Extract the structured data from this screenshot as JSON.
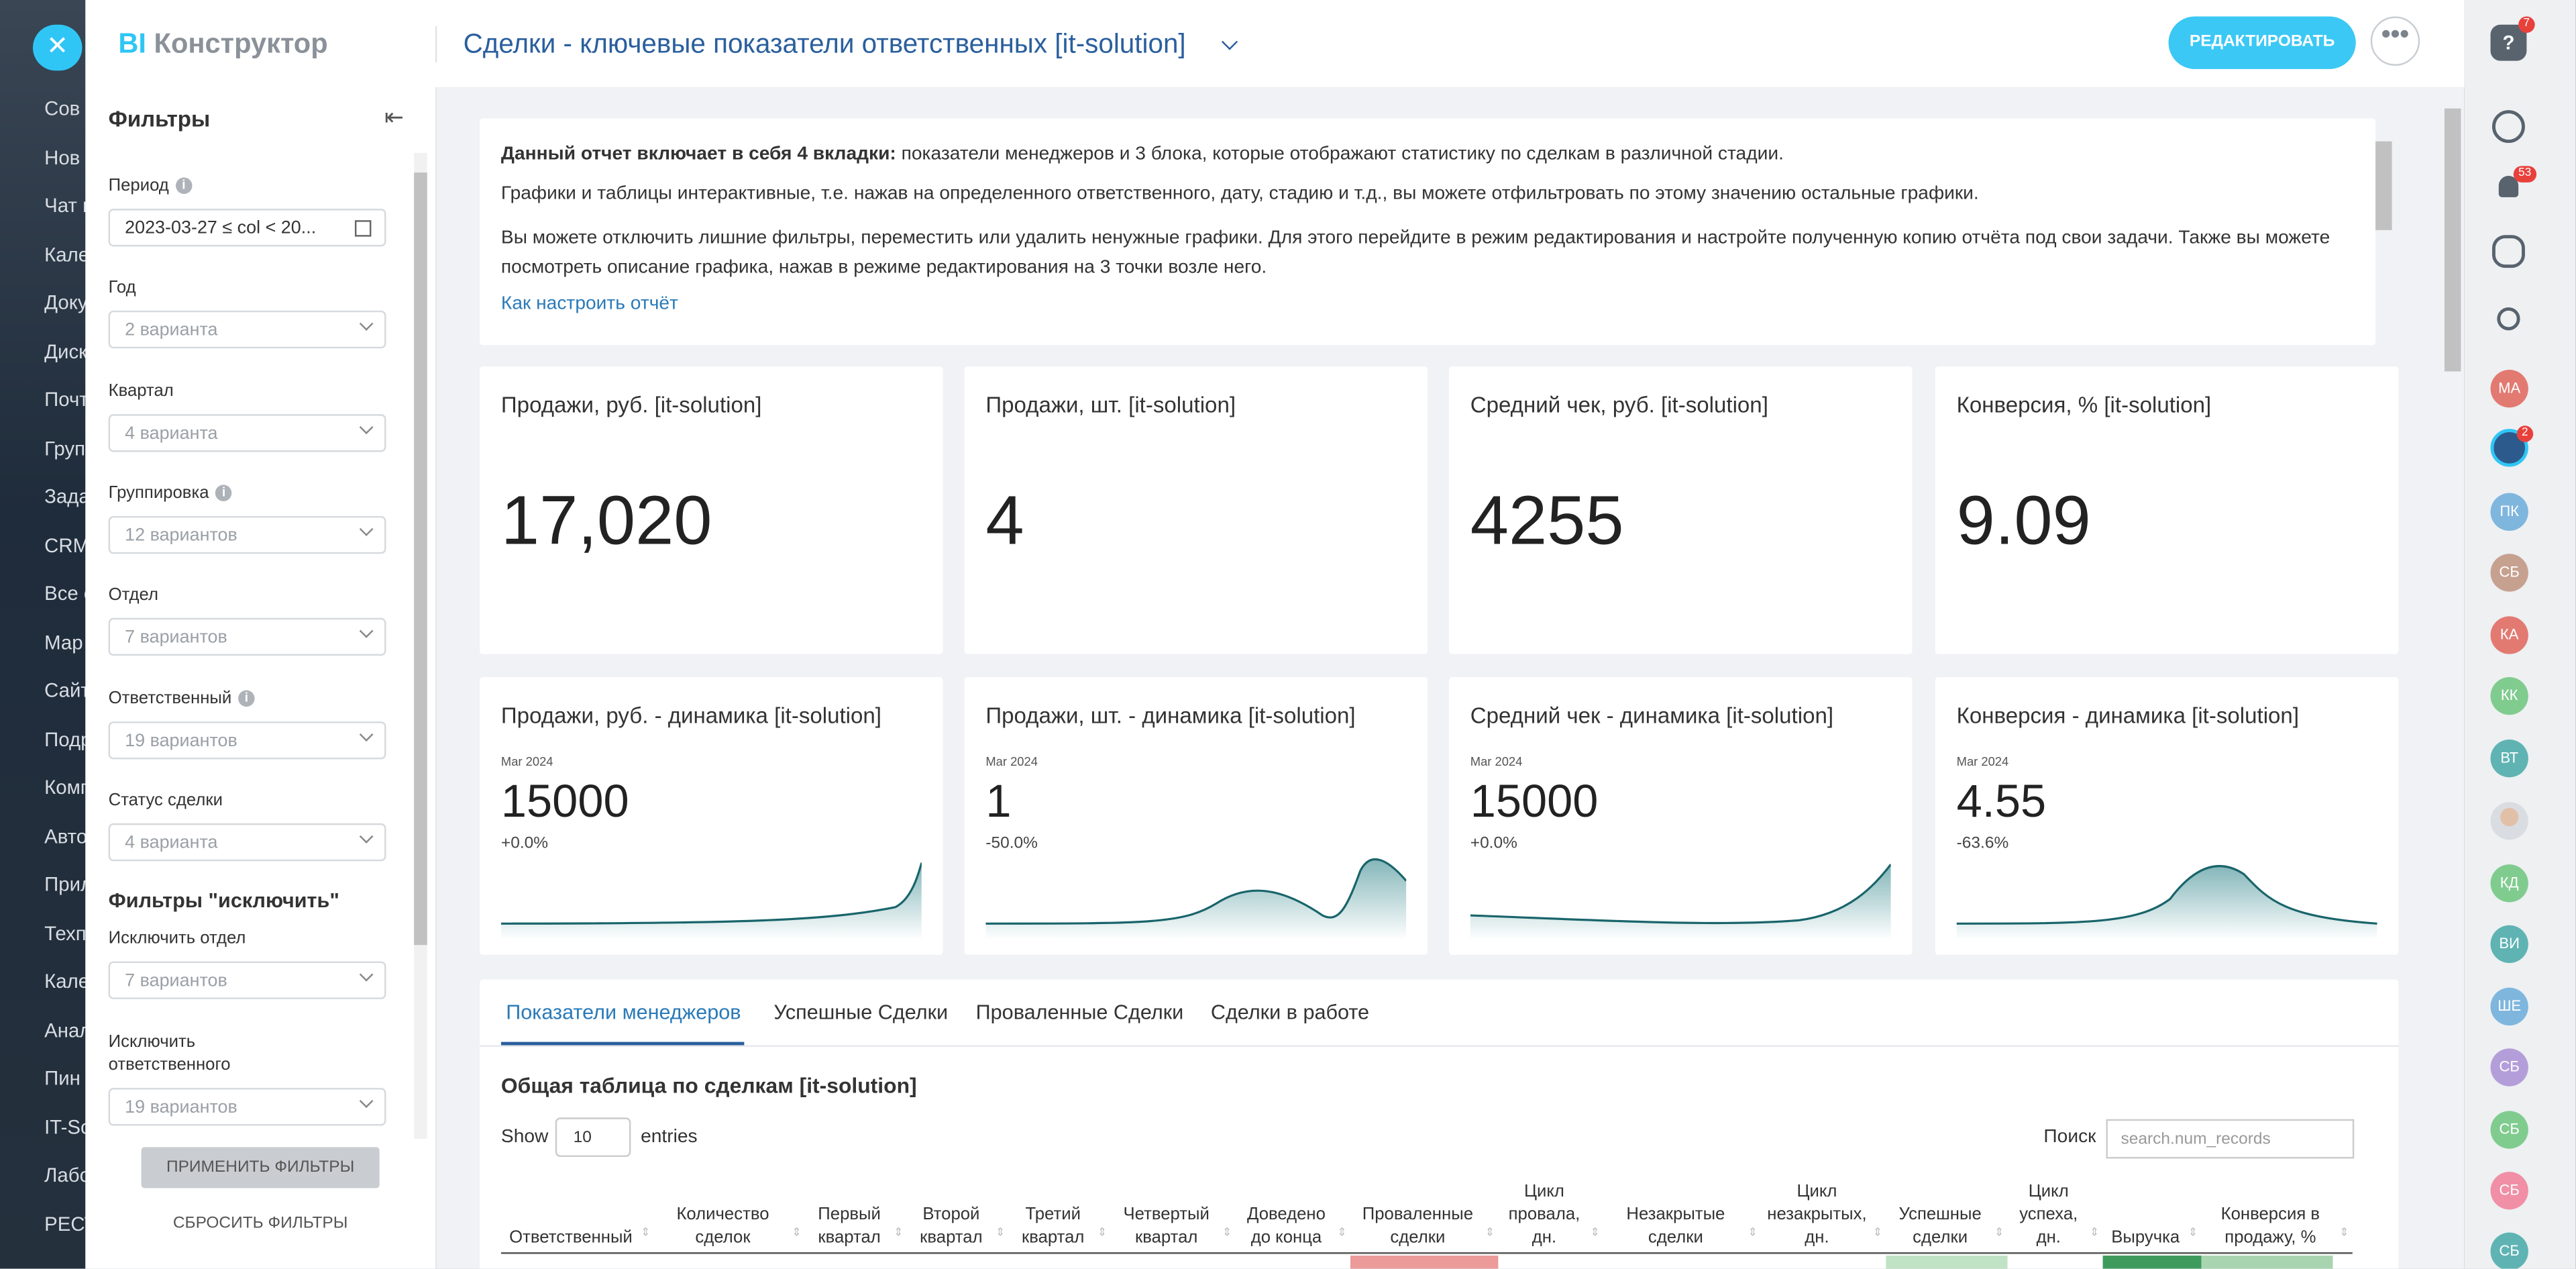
{
  "header": {
    "logo_bi": "BI",
    "logo_text": "Конструктор",
    "title": "Сделки - ключевые показатели ответственных [it-solution]",
    "edit_button": "РЕДАКТИРОВАТЬ"
  },
  "left_nav": [
    "Сов",
    "Нов",
    "Чат и",
    "Кале",
    "Доку",
    "Диск",
    "Почт",
    "Груп",
    "Зада",
    "CRM",
    "Все о",
    "Мар",
    "Сайт",
    "Подр",
    "Комп",
    "Авто",
    "Прил",
    "Техп",
    "Кале",
    "Анал",
    "Пин",
    "IT-Sc",
    "Лабо",
    "РЕСТ"
  ],
  "filters": {
    "title": "Фильтры",
    "items": [
      {
        "label": "Период",
        "info": true,
        "value": "2023-03-27 ≤ col < 20...",
        "date": true
      },
      {
        "label": "Год",
        "value": "2 варианта"
      },
      {
        "label": "Квартал",
        "value": "4 варианта"
      },
      {
        "label": "Группировка",
        "info": true,
        "value": "12 вариантов"
      },
      {
        "label": "Отдел",
        "value": "7 вариантов"
      },
      {
        "label": "Ответственный",
        "info": true,
        "value": "19 вариантов"
      },
      {
        "label": "Статус сделки",
        "value": "4 варианта"
      }
    ],
    "exclude_title": "Фильтры \"исключить\"",
    "exclude_items": [
      {
        "label": "Исключить отдел",
        "value": "7 вариантов"
      },
      {
        "label": "Исключить ответственного",
        "value": "19 вариантов"
      }
    ],
    "apply": "ПРИМЕНИТЬ ФИЛЬТРЫ",
    "reset": "СБРОСИТЬ ФИЛЬТРЫ"
  },
  "intro": {
    "p1_bold": "Данный отчет включает в себя 4 вкладки:",
    "p1_rest": " показатели менеджеров и 3 блока, которые отображают статистику по сделкам в различной стадии.",
    "p2": "Графики и таблицы интерактивные, т.е. нажав на определенного ответственного, дату, стадию и т.д., вы можете отфильтровать по этому значению остальные графики.",
    "p3": "Вы можете отключить лишние фильтры, переместить или удалить ненужные графики. Для этого перейдите в режим редактирования и настройте полученную копию отчёта под свои задачи. Также вы можете посмотреть описание графика, нажав в режиме редактирования на 3 точки возле него.",
    "link": "Как настроить отчёт"
  },
  "kpis": [
    {
      "title": "Продажи, руб. [it-solution]",
      "value": "17,020"
    },
    {
      "title": "Продажи, шт. [it-solution]",
      "value": "4"
    },
    {
      "title": "Средний чек, руб. [it-solution]",
      "value": "4255"
    },
    {
      "title": "Конверсия, % [it-solution]",
      "value": "9.09"
    }
  ],
  "dynamics": [
    {
      "title": "Продажи, руб. - динамика [it-solution]",
      "period": "Mar 2024",
      "value": "15000",
      "change": "+0.0%"
    },
    {
      "title": "Продажи, шт. - динамика [it-solution]",
      "period": "Mar 2024",
      "value": "1",
      "change": "-50.0%"
    },
    {
      "title": "Средний чек - динамика [it-solution]",
      "period": "Mar 2024",
      "value": "15000",
      "change": "+0.0%"
    },
    {
      "title": "Конверсия - динамика [it-solution]",
      "period": "Mar 2024",
      "value": "4.55",
      "change": "-63.6%"
    }
  ],
  "tabs": [
    "Показатели менеджеров",
    "Успешные Сделки",
    "Проваленные Сделки",
    "Сделки в работе"
  ],
  "table": {
    "title": "Общая таблица по сделкам [it-solution]",
    "show": "Show",
    "page_size": "10",
    "entries": "entries",
    "search_label": "Поиск",
    "search_placeholder": "search.num_records",
    "columns": [
      "Ответственный",
      "Количество сделок",
      "Первый квартал",
      "Второй квартал",
      "Третий квартал",
      "Четвертый квартал",
      "Доведено до конца",
      "Проваленные сделки",
      "Цикл провала, дн.",
      "Незакрытые сделки",
      "Цикл незакрытых, дн.",
      "Успешные сделки",
      "Цикл успеха, дн.",
      "Выручка",
      "Конверсия в продажу, %"
    ]
  },
  "right_bar": {
    "help_badge": "7",
    "bell_badge": "53",
    "group_badge": "2",
    "avatars": [
      {
        "initials": "МА",
        "color": "#e27a72"
      },
      {
        "initials": "ПК",
        "color": "#7fb6de"
      },
      {
        "initials": "СБ",
        "color": "#c7a190"
      },
      {
        "initials": "КА",
        "color": "#e27a72"
      },
      {
        "initials": "КК",
        "color": "#80cc8f"
      },
      {
        "initials": "ВТ",
        "color": "#5fb4b3"
      },
      {
        "initials": "КД",
        "color": "#80cc8f"
      },
      {
        "initials": "ВИ",
        "color": "#5fb4b3"
      },
      {
        "initials": "ШЕ",
        "color": "#7fb6de"
      },
      {
        "initials": "СБ",
        "color": "#b49ed9"
      },
      {
        "initials": "СБ",
        "color": "#80cc8f"
      },
      {
        "initials": "СБ",
        "color": "#f08fa6"
      },
      {
        "initials": "СБ",
        "color": "#5fb4b3"
      }
    ]
  }
}
